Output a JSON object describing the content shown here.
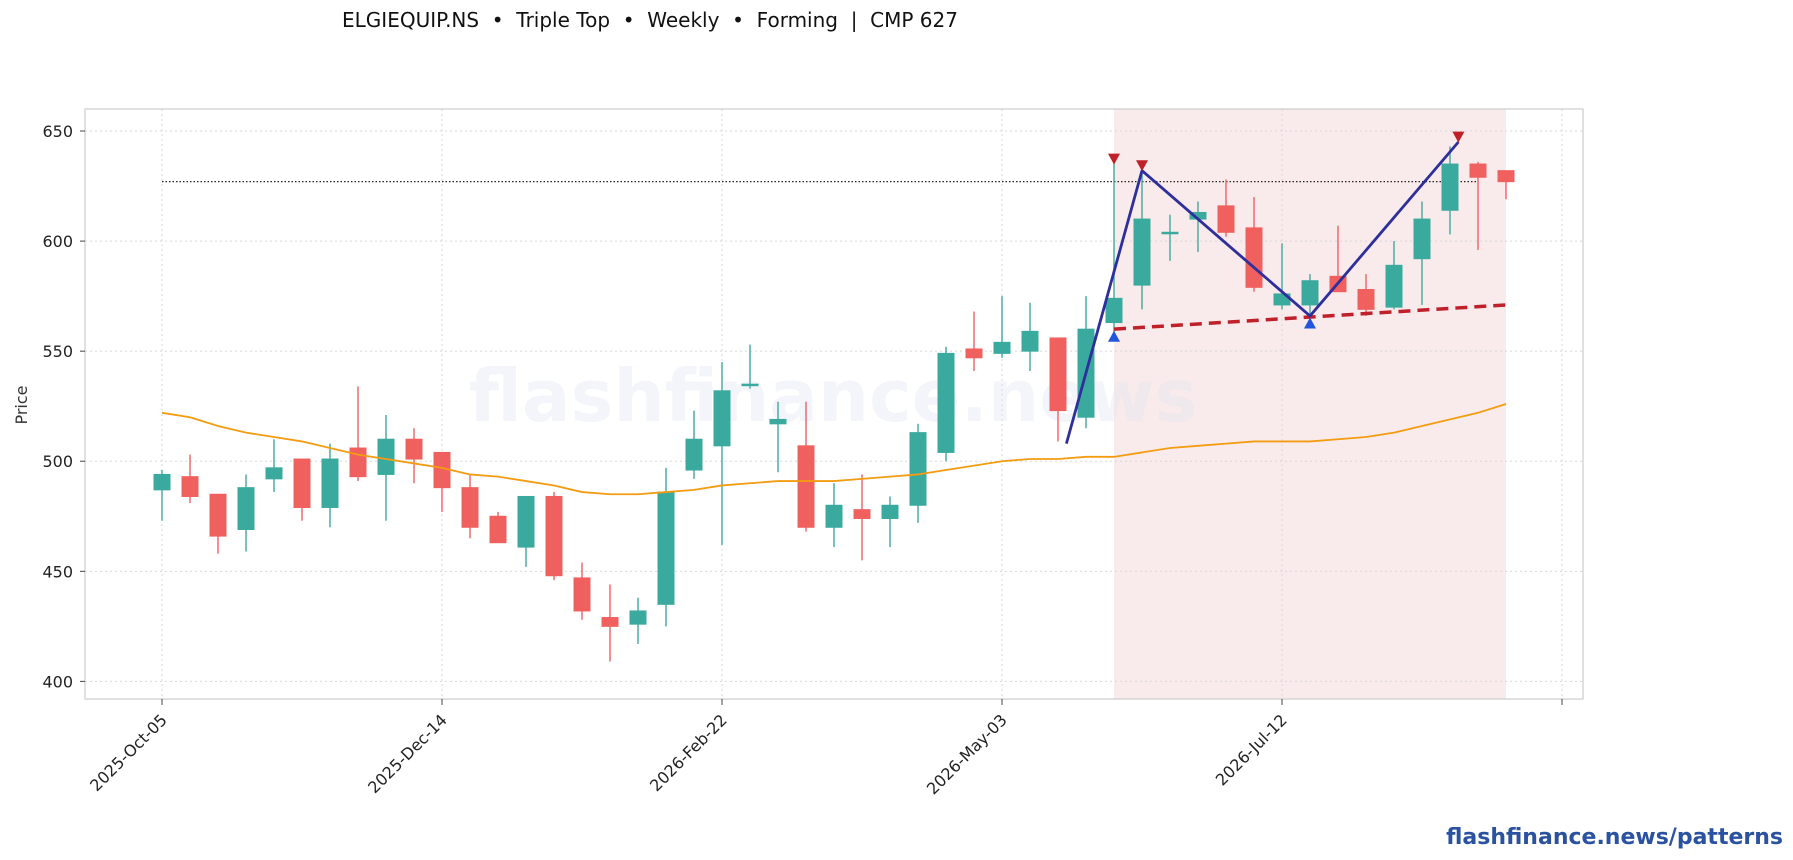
{
  "title": "ELGIEQUIP.NS  •  Triple Top  •  Weekly  •  Forming  |  CMP 627",
  "brand": "flashfinance.news/patterns",
  "watermark": "flashfinance.news",
  "colors": {
    "up": "#3aaa9e",
    "down": "#f0605e",
    "ma": "#f39c12",
    "pattern": "#2e2e9c",
    "neckline": "#c0202a",
    "peak_marker": "#c0202a",
    "trough_marker": "#2255dd",
    "highlight": "#f6e2e2"
  },
  "chart_data": {
    "type": "candlestick",
    "ylabel": "Price",
    "ylim": [
      392,
      660
    ],
    "yticks": [
      400,
      450,
      500,
      550,
      600,
      650
    ],
    "xtick_labels": [
      "2025-Oct-05",
      "2025-Dec-14",
      "2026-Feb-22",
      "2026-May-03",
      "2026-Jul-12",
      ""
    ],
    "xtick_weeks": [
      0,
      10,
      20,
      30,
      40,
      50
    ],
    "grid": true,
    "candles": [
      {
        "date": "2025-Oct-05",
        "open": 487,
        "high": 496,
        "low": 473,
        "close": 494
      },
      {
        "date": "2025-Oct-12",
        "open": 493,
        "high": 503,
        "low": 481,
        "close": 484
      },
      {
        "date": "2025-Oct-19",
        "open": 485,
        "high": 485,
        "low": 458,
        "close": 466
      },
      {
        "date": "2025-Oct-26",
        "open": 469,
        "high": 494,
        "low": 459,
        "close": 488
      },
      {
        "date": "2025-Nov-02",
        "open": 492,
        "high": 510,
        "low": 486,
        "close": 497
      },
      {
        "date": "2025-Nov-09",
        "open": 501,
        "high": 501,
        "low": 473,
        "close": 479
      },
      {
        "date": "2025-Nov-16",
        "open": 479,
        "high": 508,
        "low": 470,
        "close": 501
      },
      {
        "date": "2025-Nov-23",
        "open": 506,
        "high": 534,
        "low": 491,
        "close": 493
      },
      {
        "date": "2025-Nov-30",
        "open": 494,
        "high": 521,
        "low": 473,
        "close": 510
      },
      {
        "date": "2025-Dec-07",
        "open": 510,
        "high": 515,
        "low": 490,
        "close": 501
      },
      {
        "date": "2025-Dec-14",
        "open": 504,
        "high": 504,
        "low": 477,
        "close": 488
      },
      {
        "date": "2025-Dec-21",
        "open": 488,
        "high": 494,
        "low": 465,
        "close": 470
      },
      {
        "date": "2025-Dec-28",
        "open": 475,
        "high": 477,
        "low": 463,
        "close": 463
      },
      {
        "date": "2026-Jan-04",
        "open": 461,
        "high": 484,
        "low": 452,
        "close": 484
      },
      {
        "date": "2026-Jan-11",
        "open": 484,
        "high": 486,
        "low": 446,
        "close": 448
      },
      {
        "date": "2026-Jan-18",
        "open": 447,
        "high": 454,
        "low": 428,
        "close": 432
      },
      {
        "date": "2026-Jan-25",
        "open": 429,
        "high": 444,
        "low": 409,
        "close": 425
      },
      {
        "date": "2026-Feb-01",
        "open": 426,
        "high": 438,
        "low": 417,
        "close": 432
      },
      {
        "date": "2026-Feb-08",
        "open": 435,
        "high": 497,
        "low": 425,
        "close": 486
      },
      {
        "date": "2026-Feb-15",
        "open": 496,
        "high": 523,
        "low": 492,
        "close": 510
      },
      {
        "date": "2026-Feb-22",
        "open": 507,
        "high": 545,
        "low": 462,
        "close": 532
      },
      {
        "date": "2026-Mar-01",
        "open": 535,
        "high": 553,
        "low": 533,
        "close": 535
      },
      {
        "date": "2026-Mar-08",
        "open": 517,
        "high": 527,
        "low": 495,
        "close": 519
      },
      {
        "date": "2026-Mar-15",
        "open": 507,
        "high": 527,
        "low": 468,
        "close": 470
      },
      {
        "date": "2026-Mar-22",
        "open": 470,
        "high": 490,
        "low": 461,
        "close": 480
      },
      {
        "date": "2026-Mar-29",
        "open": 478,
        "high": 494,
        "low": 455,
        "close": 474
      },
      {
        "date": "2026-Apr-05",
        "open": 474,
        "high": 484,
        "low": 461,
        "close": 480
      },
      {
        "date": "2026-Apr-12",
        "open": 480,
        "high": 517,
        "low": 472,
        "close": 513
      },
      {
        "date": "2026-Apr-19",
        "open": 504,
        "high": 552,
        "low": 500,
        "close": 549
      },
      {
        "date": "2026-Apr-26",
        "open": 551,
        "high": 568,
        "low": 541,
        "close": 547
      },
      {
        "date": "2026-May-03",
        "open": 549,
        "high": 575,
        "low": 547,
        "close": 554
      },
      {
        "date": "2026-May-10",
        "open": 550,
        "high": 572,
        "low": 541,
        "close": 559
      },
      {
        "date": "2026-May-17",
        "open": 556,
        "high": 556,
        "low": 509,
        "close": 523
      },
      {
        "date": "2026-May-24",
        "open": 520,
        "high": 575,
        "low": 515,
        "close": 560
      },
      {
        "date": "2026-May-31",
        "open": 563,
        "high": 637,
        "low": 557,
        "close": 574
      },
      {
        "date": "2026-Jun-07",
        "open": 580,
        "high": 633,
        "low": 569,
        "close": 610
      },
      {
        "date": "2026-Jun-14",
        "open": 604,
        "high": 612,
        "low": 591,
        "close": 604
      },
      {
        "date": "2026-Jun-21",
        "open": 610,
        "high": 618,
        "low": 595,
        "close": 613
      },
      {
        "date": "2026-Jun-28",
        "open": 616,
        "high": 628,
        "low": 602,
        "close": 604
      },
      {
        "date": "2026-Jul-05",
        "open": 606,
        "high": 620,
        "low": 577,
        "close": 579
      },
      {
        "date": "2026-Jul-12",
        "open": 571,
        "high": 599,
        "low": 569,
        "close": 576
      },
      {
        "date": "2026-Jul-19",
        "open": 571,
        "high": 585,
        "low": 565,
        "close": 582
      },
      {
        "date": "2026-Jul-26",
        "open": 584,
        "high": 607,
        "low": 577,
        "close": 577
      },
      {
        "date": "2026-Aug-02",
        "open": 578,
        "high": 585,
        "low": 566,
        "close": 569
      },
      {
        "date": "2026-Aug-09",
        "open": 570,
        "high": 600,
        "low": 569,
        "close": 589
      },
      {
        "date": "2026-Aug-16",
        "open": 592,
        "high": 618,
        "low": 571,
        "close": 610
      },
      {
        "date": "2026-Aug-23",
        "open": 614,
        "high": 643,
        "low": 603,
        "close": 635
      },
      {
        "date": "2026-Aug-30",
        "open": 635,
        "high": 636,
        "low": 596,
        "close": 629
      },
      {
        "date": "2026-Sep-06",
        "open": 632,
        "high": 632,
        "low": 619,
        "close": 627
      }
    ],
    "ma": [
      522,
      520,
      516,
      513,
      511,
      509,
      506,
      503,
      501,
      499,
      497,
      494,
      493,
      491,
      489,
      486,
      485,
      485,
      486,
      487,
      489,
      490,
      491,
      491,
      491,
      492,
      493,
      494,
      496,
      498,
      500,
      501,
      501,
      502,
      502,
      504,
      506,
      507,
      508,
      509,
      509,
      509,
      510,
      511,
      513,
      516,
      519,
      522,
      526
    ],
    "resistance": {
      "value": 627,
      "from_week": 0,
      "to_week": 47
    },
    "neckline": {
      "from": {
        "week": 34,
        "value": 560
      },
      "to": {
        "week": 48,
        "value": 571
      }
    },
    "pattern_path": [
      {
        "week": 32.3,
        "value": 508
      },
      {
        "week": 35,
        "value": 632
      },
      {
        "week": 41,
        "value": 566
      },
      {
        "week": 46.3,
        "value": 645
      }
    ],
    "peaks": [
      {
        "week": 34,
        "value": 637
      },
      {
        "week": 35,
        "value": 634
      },
      {
        "week": 46.3,
        "value": 647
      }
    ],
    "troughs": [
      {
        "week": 34,
        "value": 557
      },
      {
        "week": 41,
        "value": 563
      }
    ],
    "highlight": {
      "from_week": 34,
      "to_week": 48
    }
  }
}
